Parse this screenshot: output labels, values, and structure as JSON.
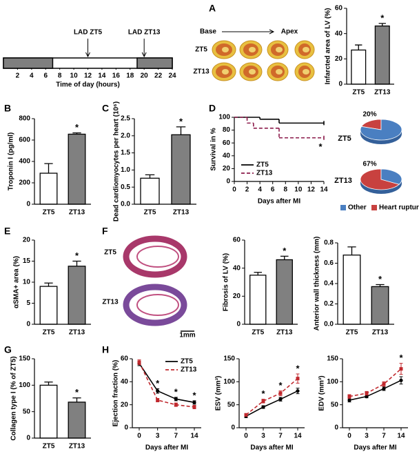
{
  "chart_data": [
    {
      "type": "timeline",
      "xlim": [
        0,
        24
      ],
      "xticks": [
        2,
        4,
        6,
        8,
        10,
        12,
        14,
        16,
        18,
        20,
        22,
        24
      ],
      "xlabel": "Time of day (hours)",
      "dark": [
        [
          0,
          7
        ],
        [
          19,
          24
        ]
      ],
      "events": [
        {
          "label": "LAD ZT5",
          "x": 12
        },
        {
          "label": "LAD ZT13",
          "x": 20
        }
      ]
    },
    {
      "type": "image",
      "panel": "A",
      "labels": [
        "Base",
        "Apex",
        "ZT5",
        "ZT13"
      ]
    },
    {
      "type": "bar",
      "ylabel": "Infarcted area of LV (%)",
      "categories": [
        "ZT5",
        "ZT13"
      ],
      "values": [
        27,
        46
      ],
      "errors": [
        4,
        2
      ],
      "colors": [
        "#ffffff",
        "#808080"
      ],
      "stars": [
        null,
        "*"
      ],
      "ylim": [
        0,
        60
      ],
      "yticks": [
        0,
        20,
        40,
        60
      ]
    },
    {
      "type": "bar",
      "panel": "B",
      "ylabel": "Troponin I (pg/ml)",
      "categories": [
        "ZT5",
        "ZT13"
      ],
      "values": [
        290,
        655
      ],
      "errors": [
        90,
        12
      ],
      "colors": [
        "#ffffff",
        "#808080"
      ],
      "stars": [
        null,
        "*"
      ],
      "ylim": [
        0,
        800
      ],
      "yticks": [
        0,
        200,
        400,
        600,
        800
      ]
    },
    {
      "type": "bar",
      "panel": "C",
      "ylabel": "Dead cardiomyocytes per heart (10⁶)",
      "categories": [
        "ZT5",
        "ZT13"
      ],
      "values": [
        0.76,
        2.03
      ],
      "errors": [
        0.1,
        0.23
      ],
      "colors": [
        "#ffffff",
        "#808080"
      ],
      "stars": [
        null,
        "*"
      ],
      "ylim": [
        0,
        2.5
      ],
      "yticks": [
        {
          "value": 0,
          "label": "0.0"
        },
        0.5,
        {
          "value": 1,
          "label": "1.0"
        },
        1.5,
        {
          "value": 2,
          "label": "2.0"
        },
        2.5
      ]
    },
    {
      "type": "line",
      "panel": "D",
      "ylabel": "Survival in %",
      "xlabel": "Days after MI",
      "xlim": [
        0,
        14
      ],
      "xticks": [
        0,
        2,
        4,
        6,
        8,
        10,
        12,
        14
      ],
      "ylim": [
        0,
        100
      ],
      "yticks": [
        0,
        20,
        40,
        60,
        80,
        100
      ],
      "step": true,
      "legend": "lower left",
      "series": [
        {
          "name": "ZT5",
          "color": "#000000",
          "x": [
            0,
            4,
            7,
            14
          ],
          "values": [
            100,
            97,
            91,
            91
          ]
        },
        {
          "name": "ZT13",
          "color": "#8b1a4a",
          "dashed": true,
          "x": [
            0,
            2,
            3,
            7,
            14
          ],
          "values": [
            100,
            91,
            83,
            68,
            68
          ],
          "star": "*"
        }
      ]
    },
    {
      "type": "pie",
      "title": "ZT5",
      "values": [
        80,
        20
      ],
      "value_labels": [
        null,
        "20%"
      ],
      "colors": [
        "#4a7fc1",
        "#c8413f"
      ]
    },
    {
      "type": "pie",
      "title": "ZT13",
      "labels": [
        "Other",
        "Heart rupture"
      ],
      "values": [
        33,
        67
      ],
      "value_labels": [
        null,
        "67%"
      ],
      "colors": [
        "#4a7fc1",
        "#c8413f"
      ],
      "legend": "bottom"
    },
    {
      "type": "bar",
      "panel": "E",
      "ylabel": "αSMA+ area (%)",
      "categories": [
        "ZT5",
        "ZT13"
      ],
      "values": [
        9,
        13.8
      ],
      "errors": [
        0.8,
        1.2
      ],
      "colors": [
        "#ffffff",
        "#808080"
      ],
      "stars": [
        null,
        "*"
      ],
      "ylim": [
        0,
        20
      ],
      "yticks": [
        0,
        5,
        10,
        15,
        20
      ]
    },
    {
      "type": "image",
      "panel": "F",
      "labels": [
        "ZT5",
        "ZT13",
        "1mm"
      ]
    },
    {
      "type": "bar",
      "ylabel": "Fibrosis of LV (%)",
      "categories": [
        "ZT5",
        "ZT13"
      ],
      "values": [
        35,
        46
      ],
      "errors": [
        2,
        2.5
      ],
      "colors": [
        "#ffffff",
        "#808080"
      ],
      "stars": [
        null,
        "*"
      ],
      "ylim": [
        0,
        60
      ],
      "yticks": [
        0,
        20,
        40,
        60
      ]
    },
    {
      "type": "bar",
      "ylabel": "Anterior wall thickness (mm)",
      "categories": [
        "ZT5",
        "ZT13"
      ],
      "values": [
        0.68,
        0.37
      ],
      "errors": [
        0.08,
        0.02
      ],
      "colors": [
        "#ffffff",
        "#808080"
      ],
      "stars": [
        null,
        "*"
      ],
      "ylim": [
        0,
        0.8
      ],
      "yticks": [
        {
          "value": 0,
          "label": "0.0"
        },
        0.2,
        0.4,
        0.6,
        0.8
      ]
    },
    {
      "type": "bar",
      "panel": "G",
      "ylabel": "Collagen type I (% of ZT5)",
      "categories": [
        "ZT5",
        "ZT13"
      ],
      "values": [
        100,
        68
      ],
      "errors": [
        6,
        8
      ],
      "colors": [
        "#ffffff",
        "#808080"
      ],
      "stars": [
        null,
        "*"
      ],
      "ylim": [
        0,
        150
      ],
      "yticks": [
        0,
        50,
        100,
        150
      ]
    },
    {
      "type": "line",
      "panel": "H",
      "ylabel": "Ejection fraction (%)",
      "xlabel": "Days after MI",
      "categories": [
        0,
        3,
        7,
        14
      ],
      "ylim": [
        0,
        60
      ],
      "yticks": [
        0,
        20,
        40,
        60
      ],
      "legend": "upper right",
      "stars": [
        null,
        "*",
        "*",
        "*"
      ],
      "series": [
        {
          "name": "ZT5",
          "color": "#000000",
          "values": [
            56,
            32,
            25,
            22
          ],
          "errors": [
            2,
            2,
            1.5,
            1.5
          ]
        },
        {
          "name": "ZT13",
          "color": "#c0282d",
          "dashed": true,
          "values": [
            57,
            24,
            20,
            18
          ],
          "errors": [
            2,
            1.5,
            1.5,
            1.5
          ]
        }
      ]
    },
    {
      "type": "line",
      "ylabel": "ESV (mm³)",
      "xlabel": "Days after MI",
      "categories": [
        0,
        3,
        7,
        14
      ],
      "ylim": [
        0,
        150
      ],
      "yticks": [
        0,
        50,
        100,
        150
      ],
      "stars": [
        null,
        "*",
        "*",
        "*"
      ],
      "series": [
        {
          "name": "ZT5",
          "color": "#000000",
          "values": [
            25,
            45,
            62,
            80
          ],
          "errors": [
            3,
            3,
            4,
            6
          ]
        },
        {
          "name": "ZT13",
          "color": "#c0282d",
          "dashed": true,
          "values": [
            28,
            58,
            75,
            107
          ],
          "errors": [
            3,
            4,
            5,
            10
          ]
        }
      ]
    },
    {
      "type": "line",
      "ylabel": "EDV (mm³)",
      "xlabel": "Days after MI",
      "categories": [
        0,
        3,
        7,
        14
      ],
      "ylim": [
        0,
        150
      ],
      "yticks": [
        0,
        50,
        100,
        150
      ],
      "stars": [
        null,
        null,
        null,
        "*"
      ],
      "series": [
        {
          "name": "ZT5",
          "color": "#000000",
          "values": [
            60,
            68,
            85,
            103
          ],
          "errors": [
            4,
            3,
            4,
            8
          ]
        },
        {
          "name": "ZT13",
          "color": "#c0282d",
          "dashed": true,
          "values": [
            68,
            75,
            95,
            128
          ],
          "errors": [
            4,
            4,
            5,
            12
          ]
        }
      ]
    }
  ]
}
